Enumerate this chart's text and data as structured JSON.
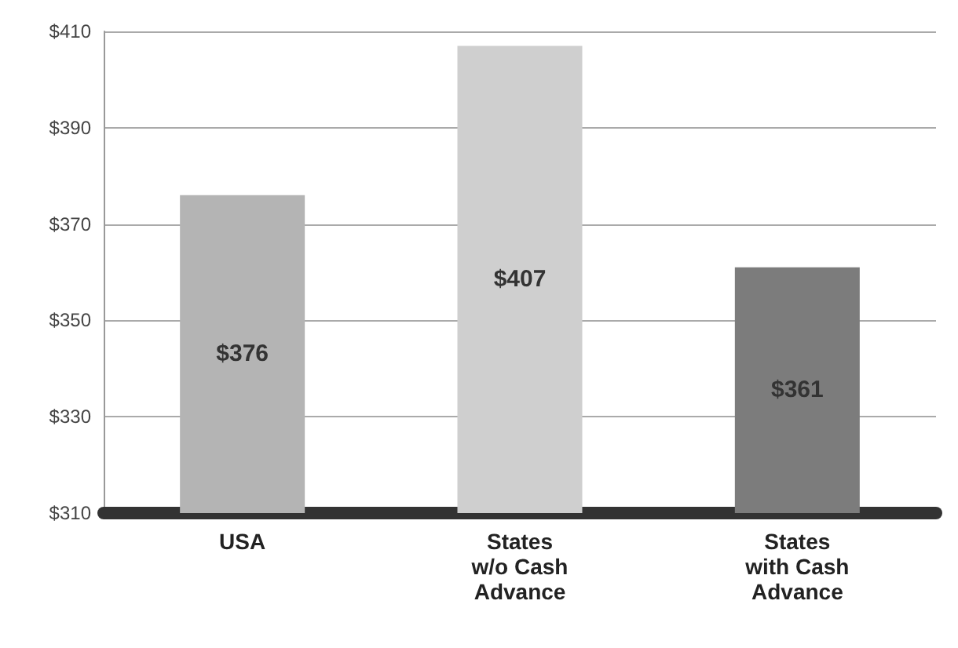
{
  "chart_data": {
    "type": "bar",
    "categories": [
      "USA",
      "States\nw/o Cash\nAdvance",
      "States\nwith Cash\nAdvance"
    ],
    "values": [
      376,
      407,
      361
    ],
    "value_labels": [
      "$376",
      "$407",
      "$361"
    ],
    "colors": [
      "#b4b4b4",
      "#cfcfcf",
      "#7c7c7c"
    ],
    "ylim": [
      310,
      410
    ],
    "yticks": [
      {
        "value": 310,
        "label": "$310"
      },
      {
        "value": 330,
        "label": "$330"
      },
      {
        "value": 350,
        "label": "$350"
      },
      {
        "value": 370,
        "label": "$370"
      },
      {
        "value": 390,
        "label": "$390"
      },
      {
        "value": 410,
        "label": "$410"
      }
    ],
    "grid": "y"
  }
}
